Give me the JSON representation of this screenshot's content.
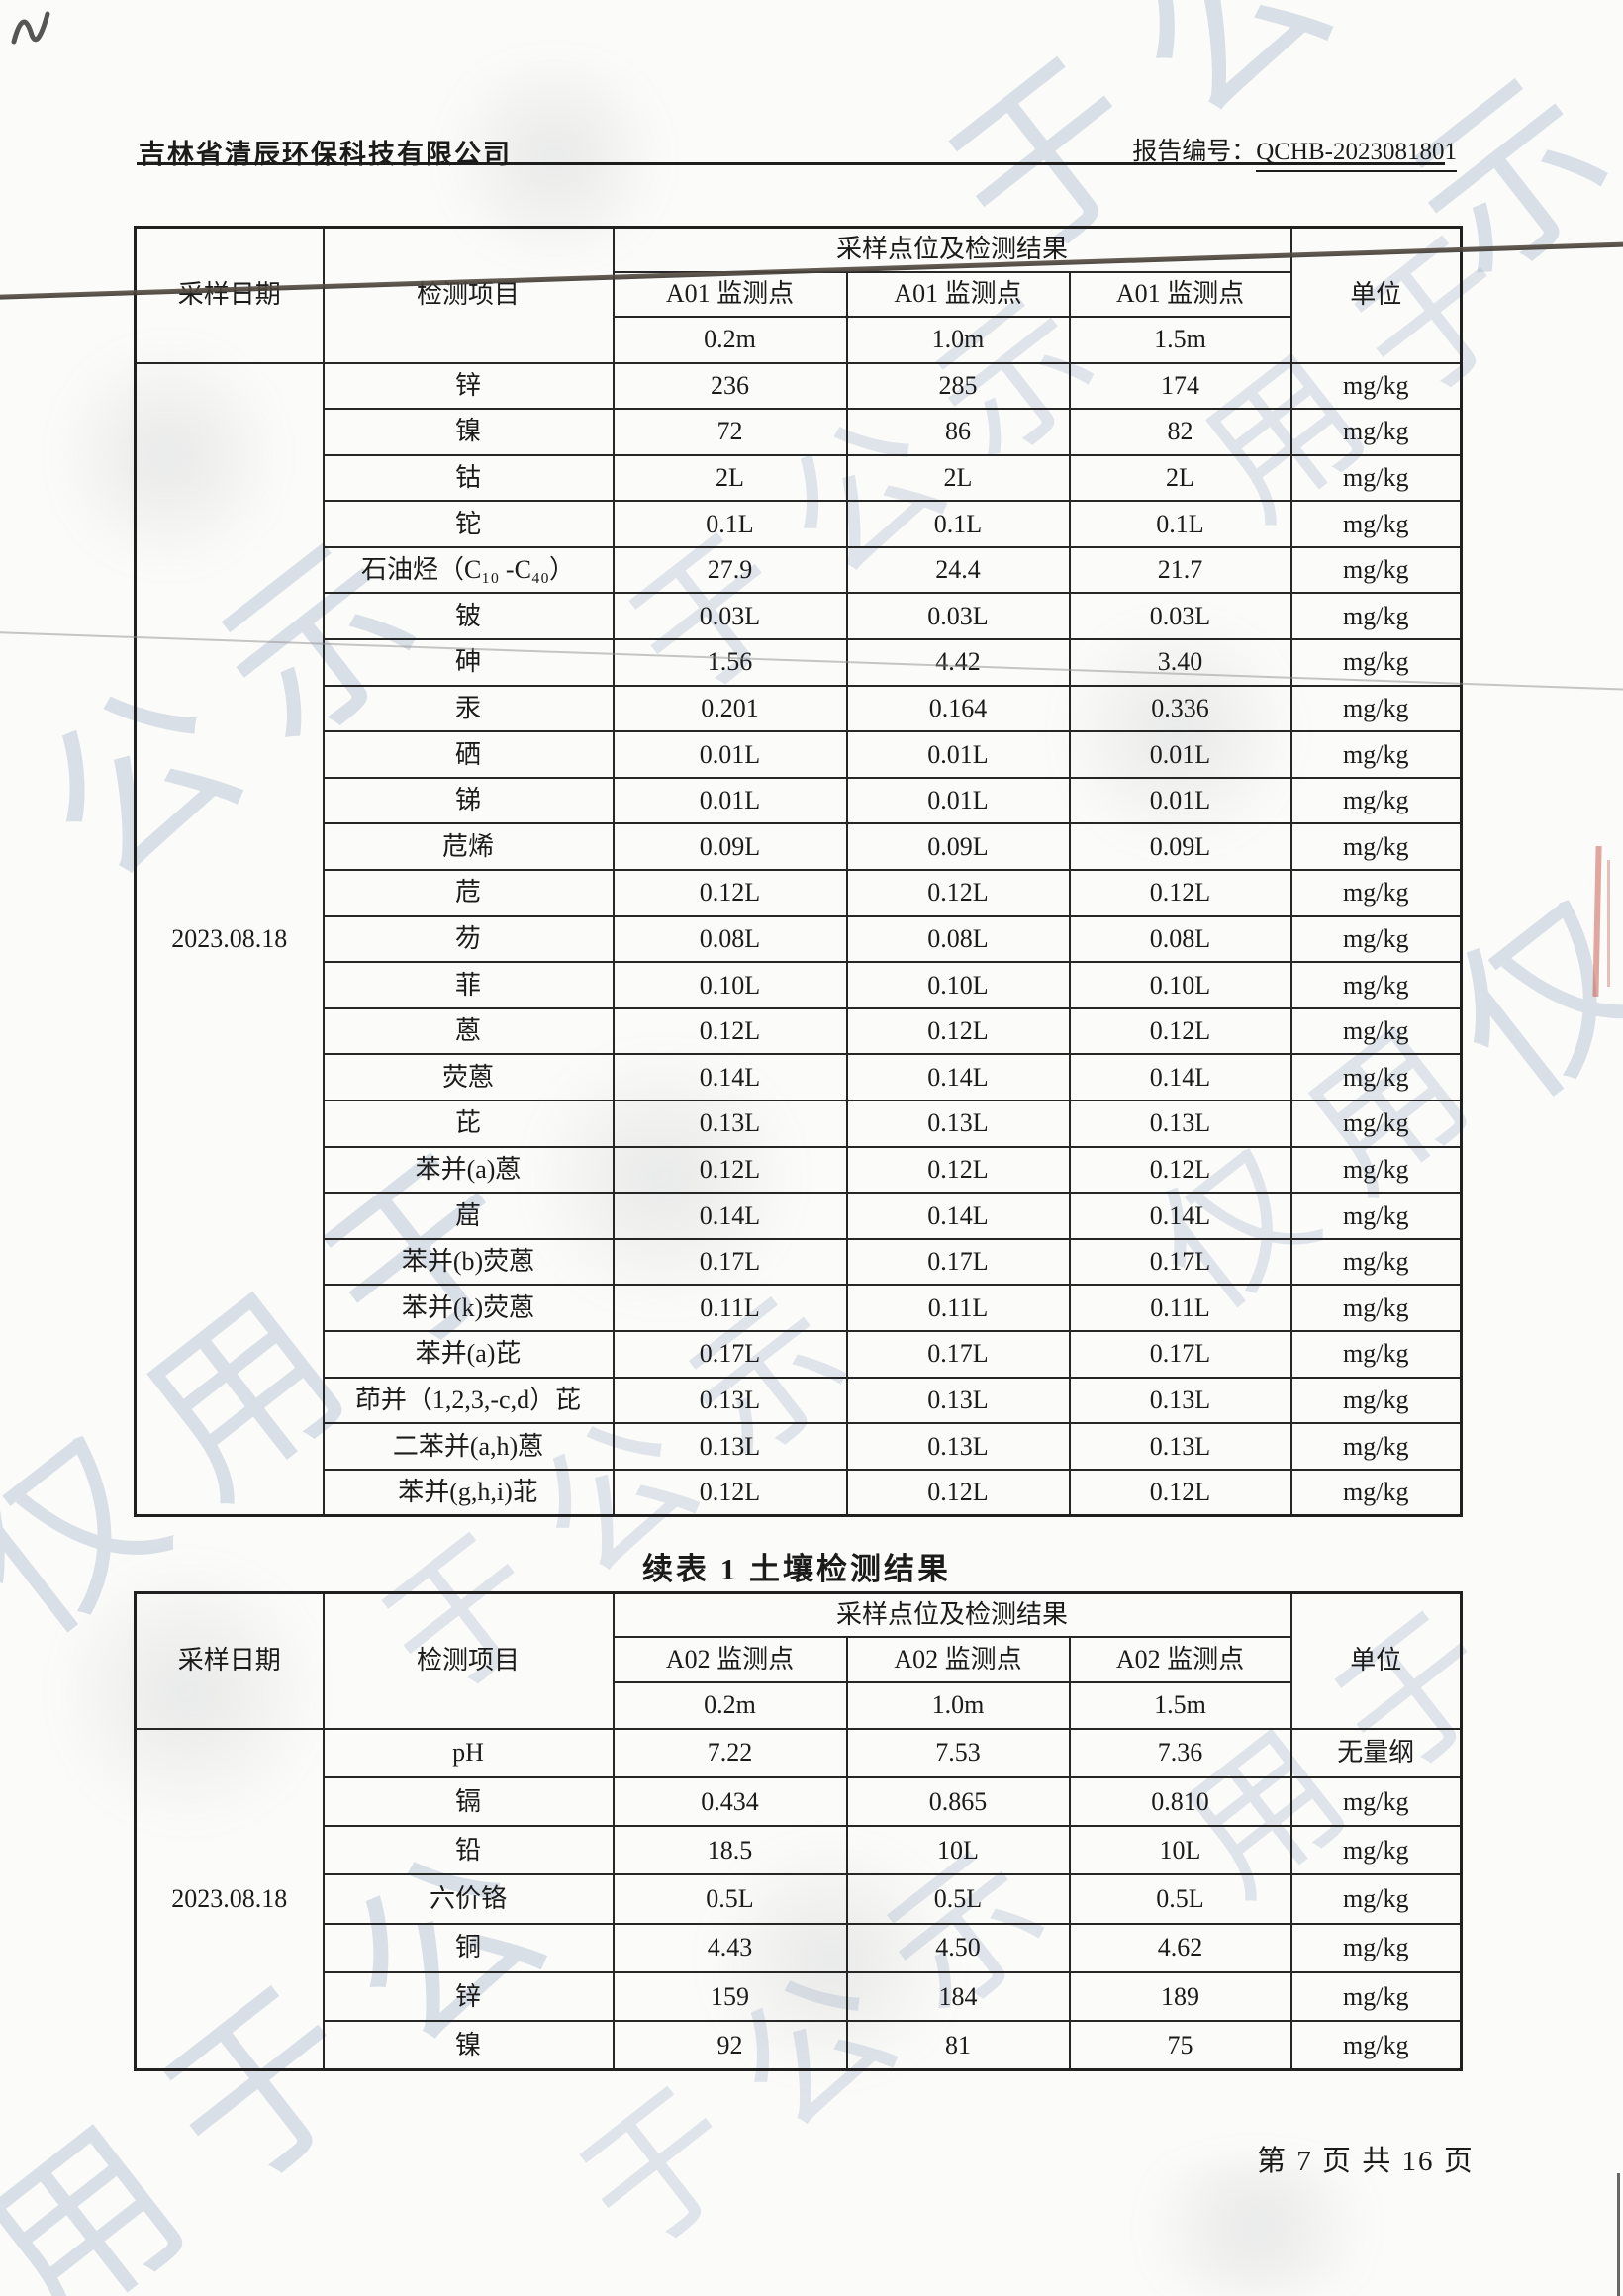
{
  "page": {
    "company": "吉林省清辰环保科技有限公司",
    "report_label": "报告编号：",
    "report_no": "QCHB-2023081801",
    "continuation_title": "续表 1 土壤检测结果",
    "footer": "第 7 页 共 16 页",
    "watermarks": [
      "于公",
      "示",
      "用于",
      "于公示",
      "公示",
      "仅用于",
      "仅用",
      "用于公",
      "仅"
    ]
  },
  "table1": {
    "headers": {
      "date": "采样日期",
      "item": "检测项目",
      "group": "采样点位及检测结果",
      "unit": "单位",
      "points": [
        "A01 监测点",
        "A01 监测点",
        "A01 监测点"
      ],
      "depths": [
        "0.2m",
        "1.0m",
        "1.5m"
      ]
    },
    "date": "2023.08.18",
    "rows": [
      {
        "item": "锌",
        "v": [
          "236",
          "285",
          "174"
        ],
        "unit": "mg/kg"
      },
      {
        "item": "镍",
        "v": [
          "72",
          "86",
          "82"
        ],
        "unit": "mg/kg"
      },
      {
        "item": "钴",
        "v": [
          "2L",
          "2L",
          "2L"
        ],
        "unit": "mg/kg"
      },
      {
        "item": "铊",
        "v": [
          "0.1L",
          "0.1L",
          "0.1L"
        ],
        "unit": "mg/kg"
      },
      {
        "item": "石油烃（C₁₀ -C₄₀）",
        "v": [
          "27.9",
          "24.4",
          "21.7"
        ],
        "unit": "mg/kg"
      },
      {
        "item": "铍",
        "v": [
          "0.03L",
          "0.03L",
          "0.03L"
        ],
        "unit": "mg/kg"
      },
      {
        "item": "砷",
        "v": [
          "1.56",
          "4.42",
          "3.40"
        ],
        "unit": "mg/kg"
      },
      {
        "item": "汞",
        "v": [
          "0.201",
          "0.164",
          "0.336"
        ],
        "unit": "mg/kg"
      },
      {
        "item": "硒",
        "v": [
          "0.01L",
          "0.01L",
          "0.01L"
        ],
        "unit": "mg/kg"
      },
      {
        "item": "锑",
        "v": [
          "0.01L",
          "0.01L",
          "0.01L"
        ],
        "unit": "mg/kg"
      },
      {
        "item": "苊烯",
        "v": [
          "0.09L",
          "0.09L",
          "0.09L"
        ],
        "unit": "mg/kg"
      },
      {
        "item": "苊",
        "v": [
          "0.12L",
          "0.12L",
          "0.12L"
        ],
        "unit": "mg/kg"
      },
      {
        "item": "芴",
        "v": [
          "0.08L",
          "0.08L",
          "0.08L"
        ],
        "unit": "mg/kg"
      },
      {
        "item": "菲",
        "v": [
          "0.10L",
          "0.10L",
          "0.10L"
        ],
        "unit": "mg/kg"
      },
      {
        "item": "蒽",
        "v": [
          "0.12L",
          "0.12L",
          "0.12L"
        ],
        "unit": "mg/kg"
      },
      {
        "item": "荧蒽",
        "v": [
          "0.14L",
          "0.14L",
          "0.14L"
        ],
        "unit": "mg/kg"
      },
      {
        "item": "芘",
        "v": [
          "0.13L",
          "0.13L",
          "0.13L"
        ],
        "unit": "mg/kg"
      },
      {
        "item": "苯并(a)蒽",
        "v": [
          "0.12L",
          "0.12L",
          "0.12L"
        ],
        "unit": "mg/kg"
      },
      {
        "item": "䓛",
        "v": [
          "0.14L",
          "0.14L",
          "0.14L"
        ],
        "unit": "mg/kg"
      },
      {
        "item": "苯并(b)荧蒽",
        "v": [
          "0.17L",
          "0.17L",
          "0.17L"
        ],
        "unit": "mg/kg"
      },
      {
        "item": "苯并(k)荧蒽",
        "v": [
          "0.11L",
          "0.11L",
          "0.11L"
        ],
        "unit": "mg/kg"
      },
      {
        "item": "苯并(a)芘",
        "v": [
          "0.17L",
          "0.17L",
          "0.17L"
        ],
        "unit": "mg/kg"
      },
      {
        "item": "茚并（1,2,3,-c,d）芘",
        "v": [
          "0.13L",
          "0.13L",
          "0.13L"
        ],
        "unit": "mg/kg"
      },
      {
        "item": "二苯并(a,h)蒽",
        "v": [
          "0.13L",
          "0.13L",
          "0.13L"
        ],
        "unit": "mg/kg"
      },
      {
        "item": "苯并(g,h,i)苝",
        "v": [
          "0.12L",
          "0.12L",
          "0.12L"
        ],
        "unit": "mg/kg"
      }
    ]
  },
  "table2": {
    "headers": {
      "date": "采样日期",
      "item": "检测项目",
      "group": "采样点位及检测结果",
      "unit": "单位",
      "points": [
        "A02 监测点",
        "A02 监测点",
        "A02 监测点"
      ],
      "depths": [
        "0.2m",
        "1.0m",
        "1.5m"
      ]
    },
    "date": "2023.08.18",
    "rows": [
      {
        "item": "pH",
        "v": [
          "7.22",
          "7.53",
          "7.36"
        ],
        "unit": "无量纲"
      },
      {
        "item": "镉",
        "v": [
          "0.434",
          "0.865",
          "0.810"
        ],
        "unit": "mg/kg"
      },
      {
        "item": "铅",
        "v": [
          "18.5",
          "10L",
          "10L"
        ],
        "unit": "mg/kg"
      },
      {
        "item": "六价铬",
        "v": [
          "0.5L",
          "0.5L",
          "0.5L"
        ],
        "unit": "mg/kg"
      },
      {
        "item": "铜",
        "v": [
          "4.43",
          "4.50",
          "4.62"
        ],
        "unit": "mg/kg"
      },
      {
        "item": "锌",
        "v": [
          "159",
          "184",
          "189"
        ],
        "unit": "mg/kg"
      },
      {
        "item": "镍",
        "v": [
          "92",
          "81",
          "75"
        ],
        "unit": "mg/kg"
      }
    ]
  }
}
